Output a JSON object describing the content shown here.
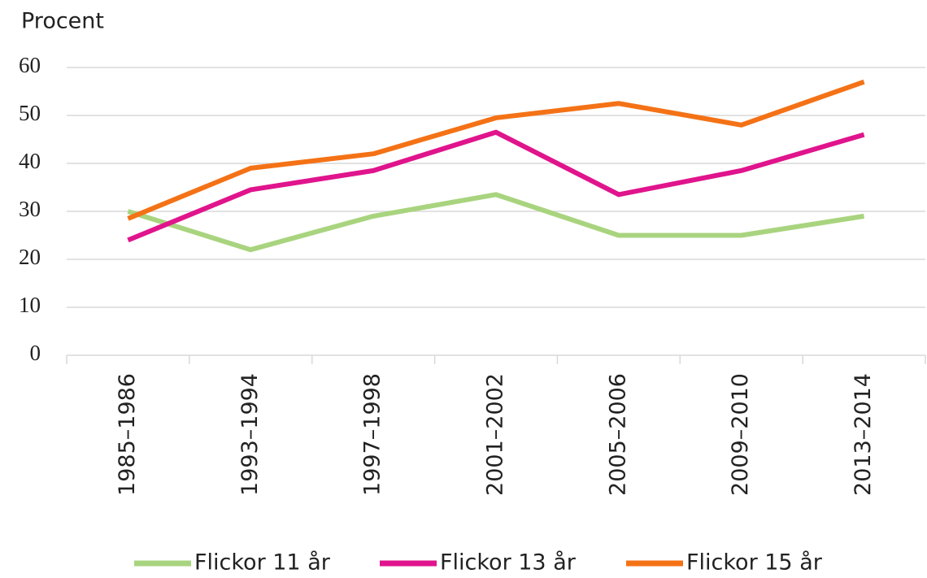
{
  "chart_data": {
    "type": "line",
    "ylabel": "Procent",
    "categories": [
      "1985–1986",
      "1993–1994",
      "1997–1998",
      "2001–2002",
      "2005–2006",
      "2009–2010",
      "2013–2014"
    ],
    "series": [
      {
        "name": "Flickor 11 år",
        "color": "#a9d47f",
        "values": [
          30,
          22,
          29,
          33.5,
          25,
          25,
          29
        ]
      },
      {
        "name": "Flickor 13 år",
        "color": "#e0148c",
        "values": [
          24,
          34.5,
          38.5,
          46.5,
          33.5,
          38.5,
          46
        ]
      },
      {
        "name": "Flickor 15 år",
        "color": "#f47216",
        "values": [
          28.5,
          39,
          42,
          49.5,
          52.5,
          48,
          57
        ]
      }
    ],
    "ylim": [
      0,
      60
    ],
    "yticks": [
      0,
      10,
      20,
      30,
      40,
      50,
      60
    ],
    "grid": true,
    "legend": "bottom"
  }
}
